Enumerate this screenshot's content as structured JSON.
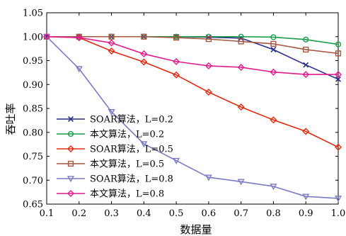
{
  "chart_data": {
    "type": "line",
    "xlabel": "数据量",
    "ylabel": "吞吐率",
    "xlim": [
      0.1,
      1.0
    ],
    "ylim": [
      0.65,
      1.05
    ],
    "x_ticks": [
      "0.1",
      "0.2",
      "0.3",
      "0.4",
      "0.5",
      "0.6",
      "0.7",
      "0.8",
      "0.9",
      "1.0"
    ],
    "y_ticks": [
      "0.65",
      "0.70",
      "0.75",
      "0.80",
      "0.85",
      "0.90",
      "0.95",
      "1.00",
      "1.05"
    ],
    "grid": false,
    "legend_position": "bottom-left",
    "x": [
      0.1,
      0.2,
      0.3,
      0.4,
      0.5,
      0.6,
      0.7,
      0.8,
      0.9,
      1.0
    ],
    "series": [
      {
        "name": "SOAR算法，L=0.2",
        "color": "#2b2f8f",
        "marker": "x",
        "values": [
          1.0,
          1.0,
          1.0,
          1.0,
          1.0,
          0.999,
          0.997,
          0.973,
          0.941,
          0.911
        ]
      },
      {
        "name": "本文算法，L=0.2",
        "color": "#1a9e4a",
        "marker": "circle",
        "values": [
          1.0,
          1.0,
          1.0,
          1.0,
          1.0,
          1.0,
          1.0,
          0.999,
          0.994,
          0.984
        ]
      },
      {
        "name": "SOAR算法，L=0.5",
        "color": "#e02a10",
        "marker": "diamond",
        "values": [
          1.0,
          0.998,
          0.97,
          0.947,
          0.92,
          0.884,
          0.853,
          0.826,
          0.802,
          0.769
        ]
      },
      {
        "name": "本文算法，L=0.5",
        "color": "#a5573d",
        "marker": "square",
        "values": [
          1.0,
          1.0,
          1.0,
          1.0,
          0.998,
          0.995,
          0.99,
          0.985,
          0.973,
          0.965
        ]
      },
      {
        "name": "SOAR算法，L=0.8",
        "color": "#7b7bc4",
        "marker": "triangle-down",
        "values": [
          1.0,
          0.933,
          0.843,
          0.776,
          0.741,
          0.706,
          0.697,
          0.687,
          0.666,
          0.662
        ]
      },
      {
        "name": "本文算法，L=0.8",
        "color": "#e01c8f",
        "marker": "diamond",
        "values": [
          1.0,
          0.998,
          0.987,
          0.964,
          0.948,
          0.939,
          0.936,
          0.926,
          0.921,
          0.921
        ]
      }
    ]
  }
}
